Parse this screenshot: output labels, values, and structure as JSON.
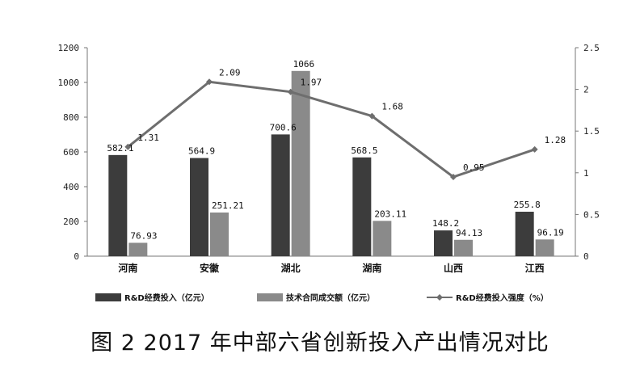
{
  "caption": "图 2 2017 年中部六省创新投入产出情况对比",
  "chart_data": {
    "type": "bar",
    "categories": [
      "河南",
      "安徽",
      "湖北",
      "湖南",
      "山西",
      "江西"
    ],
    "series": [
      {
        "name": "R&D经费投入（亿元）",
        "kind": "bar",
        "axis": "left",
        "color": "#3c3c3c",
        "values": [
          582.1,
          564.9,
          700.6,
          568.5,
          148.2,
          255.8
        ],
        "labels": [
          "582.1",
          "564.9",
          "700.6",
          "568.5",
          "148.2",
          "255.8"
        ]
      },
      {
        "name": "技术合同成交额（亿元）",
        "kind": "bar",
        "axis": "left",
        "color": "#8a8a8a",
        "values": [
          76.93,
          251.21,
          1066,
          203.11,
          94.13,
          96.19
        ],
        "labels": [
          "76.93",
          "251.21",
          "1066",
          "203.11",
          "94.13",
          "96.19"
        ]
      },
      {
        "name": "R&D经费投入强度（%）",
        "kind": "line",
        "axis": "right",
        "color": "#6e6e6e",
        "values": [
          1.31,
          2.09,
          1.97,
          1.68,
          0.95,
          1.28
        ],
        "labels": [
          "1.31",
          "2.09",
          "1.97",
          "1.68",
          "0.95",
          "1.28"
        ]
      }
    ],
    "y_left": {
      "range": [
        0,
        1200
      ],
      "ticks": [
        "0",
        "200",
        "400",
        "600",
        "800",
        "1000",
        "1200"
      ]
    },
    "y_right": {
      "range": [
        0,
        2.5
      ],
      "ticks": [
        "0",
        "0.5",
        "1",
        "1.5",
        "2",
        "2.5"
      ]
    },
    "grid": false,
    "legend_position": "bottom"
  }
}
